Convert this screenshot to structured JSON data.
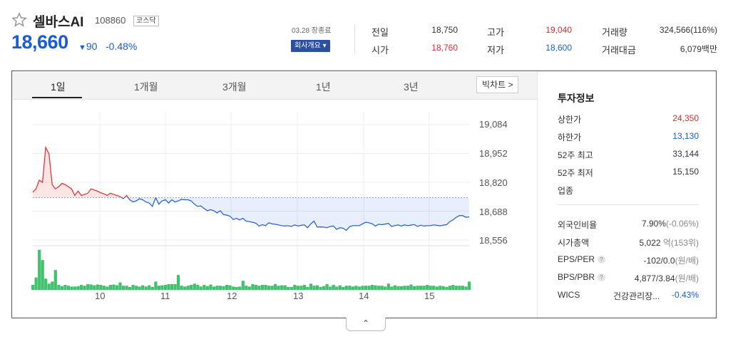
{
  "header": {
    "stock_name": "셀바스AI",
    "stock_code": "108860",
    "market_badge": "코스닥",
    "price": "18,660",
    "change_arrow": "▼",
    "change": "90",
    "change_pct": "-0.48%",
    "date_status": "03.28 장종료",
    "company_button": "회사개요 ▾"
  },
  "quote": {
    "prev_label": "전일",
    "prev_value": "18,750",
    "open_label": "시가",
    "open_value": "18,760",
    "high_label": "고가",
    "high_value": "19,040",
    "low_label": "저가",
    "low_value": "18,600",
    "volume_label": "거래량",
    "volume_value": "324,566(116%)",
    "amount_label": "거래대금",
    "amount_value": "6,079백만"
  },
  "tabs": [
    "1일",
    "1개월",
    "3개월",
    "1년",
    "3년"
  ],
  "big_chart_label": "빅차트 >",
  "expand_label": "⌃",
  "colors": {
    "up": "#e0292b",
    "down": "#1a5bd6",
    "volume": "#3ec26a",
    "brand": "#2b4fa3"
  },
  "chart_data": {
    "type": "line",
    "xticks": [
      "10",
      "11",
      "12",
      "13",
      "14",
      "15"
    ],
    "yticks": [
      "19,084",
      "18,952",
      "18,820",
      "18,688",
      "18,556"
    ],
    "ylim": [
      18556,
      19084
    ],
    "reference_price": 18750,
    "price_series": [
      18775,
      18790,
      18830,
      18820,
      18980,
      18950,
      18810,
      18790,
      18800,
      18815,
      18810,
      18800,
      18790,
      18760,
      18780,
      18760,
      18765,
      18770,
      18790,
      18785,
      18780,
      18772,
      18768,
      18760,
      18770,
      18765,
      18760,
      18755,
      18745,
      18760,
      18740,
      18730,
      18735,
      18745,
      18740,
      18730,
      18725,
      18710,
      18750,
      18720,
      18735,
      18740,
      18725,
      18740,
      18730,
      18735,
      18742,
      18740,
      18740,
      18735,
      18720,
      18710,
      18712,
      18700,
      18690,
      18695,
      18690,
      18680,
      18690,
      18672,
      18670,
      18665,
      18650,
      18655,
      18648,
      18655,
      18642,
      18640,
      18637,
      18633,
      18620,
      18626,
      18622,
      18635,
      18630,
      18628,
      18625,
      18622,
      18620,
      18622,
      18618,
      18625,
      18620,
      18623,
      18625,
      18612,
      18630,
      18642,
      18615,
      18616,
      18615,
      18612,
      18618,
      18620,
      18605,
      18612,
      18610,
      18600,
      18617,
      18622,
      18622,
      18622,
      18630,
      18637,
      18635,
      18630,
      18620,
      18628,
      18626,
      18629,
      18632,
      18618,
      18622,
      18625,
      18620,
      18625,
      18622,
      18624,
      18627,
      18618,
      18624,
      18620,
      18622,
      18622,
      18625,
      18623,
      18621,
      18624,
      18626,
      18640,
      18648,
      18660,
      18668,
      18667,
      18660,
      18662
    ],
    "volume_series": [
      12,
      30,
      97,
      72,
      27,
      15,
      20,
      48,
      12,
      9,
      12,
      10,
      8,
      8,
      9,
      12,
      10,
      14,
      13,
      11,
      13,
      12,
      10,
      8,
      12,
      13,
      11,
      18,
      10,
      10,
      7,
      12,
      10,
      8,
      11,
      8,
      11,
      7,
      20,
      10,
      11,
      12,
      14,
      14,
      14,
      36,
      10,
      8,
      10,
      12,
      15,
      12,
      8,
      12,
      9,
      13,
      8,
      10,
      10,
      9,
      12,
      11,
      8,
      7,
      8,
      22,
      10,
      8,
      14,
      12,
      10,
      12,
      12,
      10,
      10,
      14,
      10,
      11,
      11,
      7,
      7,
      12,
      10,
      10,
      12,
      7,
      15,
      10,
      11,
      7,
      9,
      14,
      8,
      12,
      8,
      11,
      7,
      10,
      10,
      8,
      10,
      8,
      10,
      10,
      10,
      12,
      11,
      10,
      10,
      8,
      15,
      8,
      11,
      9,
      9,
      10,
      10,
      13,
      9,
      10,
      10,
      10,
      12,
      10,
      10,
      8,
      10,
      9,
      7,
      10,
      12,
      10,
      10,
      10,
      8,
      20
    ]
  },
  "investment": {
    "title": "투자정보",
    "rows1": [
      {
        "label": "상한가",
        "value": "24,350",
        "color": "#e0292b"
      },
      {
        "label": "하한가",
        "value": "13,130",
        "color": "#1a5bd6"
      },
      {
        "label": "52주 최고",
        "value": "33,144",
        "color": "#333"
      },
      {
        "label": "52주 최저",
        "value": "15,150",
        "color": "#333"
      },
      {
        "label": "업종",
        "value": "",
        "color": "#333"
      }
    ],
    "foreign_label": "외국인비율",
    "foreign_value": "7.90%",
    "foreign_chg": "(-0.06%)",
    "mcap_label": "시가총액",
    "mcap_value": "5,022",
    "mcap_unit": "억(153위)",
    "eps_label": "EPS/PER",
    "eps_value": "-102/0.0",
    "eps_unit": "(원/배)",
    "bps_label": "BPS/PBR",
    "bps_value": "4,877/3.84",
    "bps_unit": "(원/배)",
    "wics_label": "WICS",
    "wics_sector": "건강관리장...",
    "wics_chg": "-0.43%"
  }
}
